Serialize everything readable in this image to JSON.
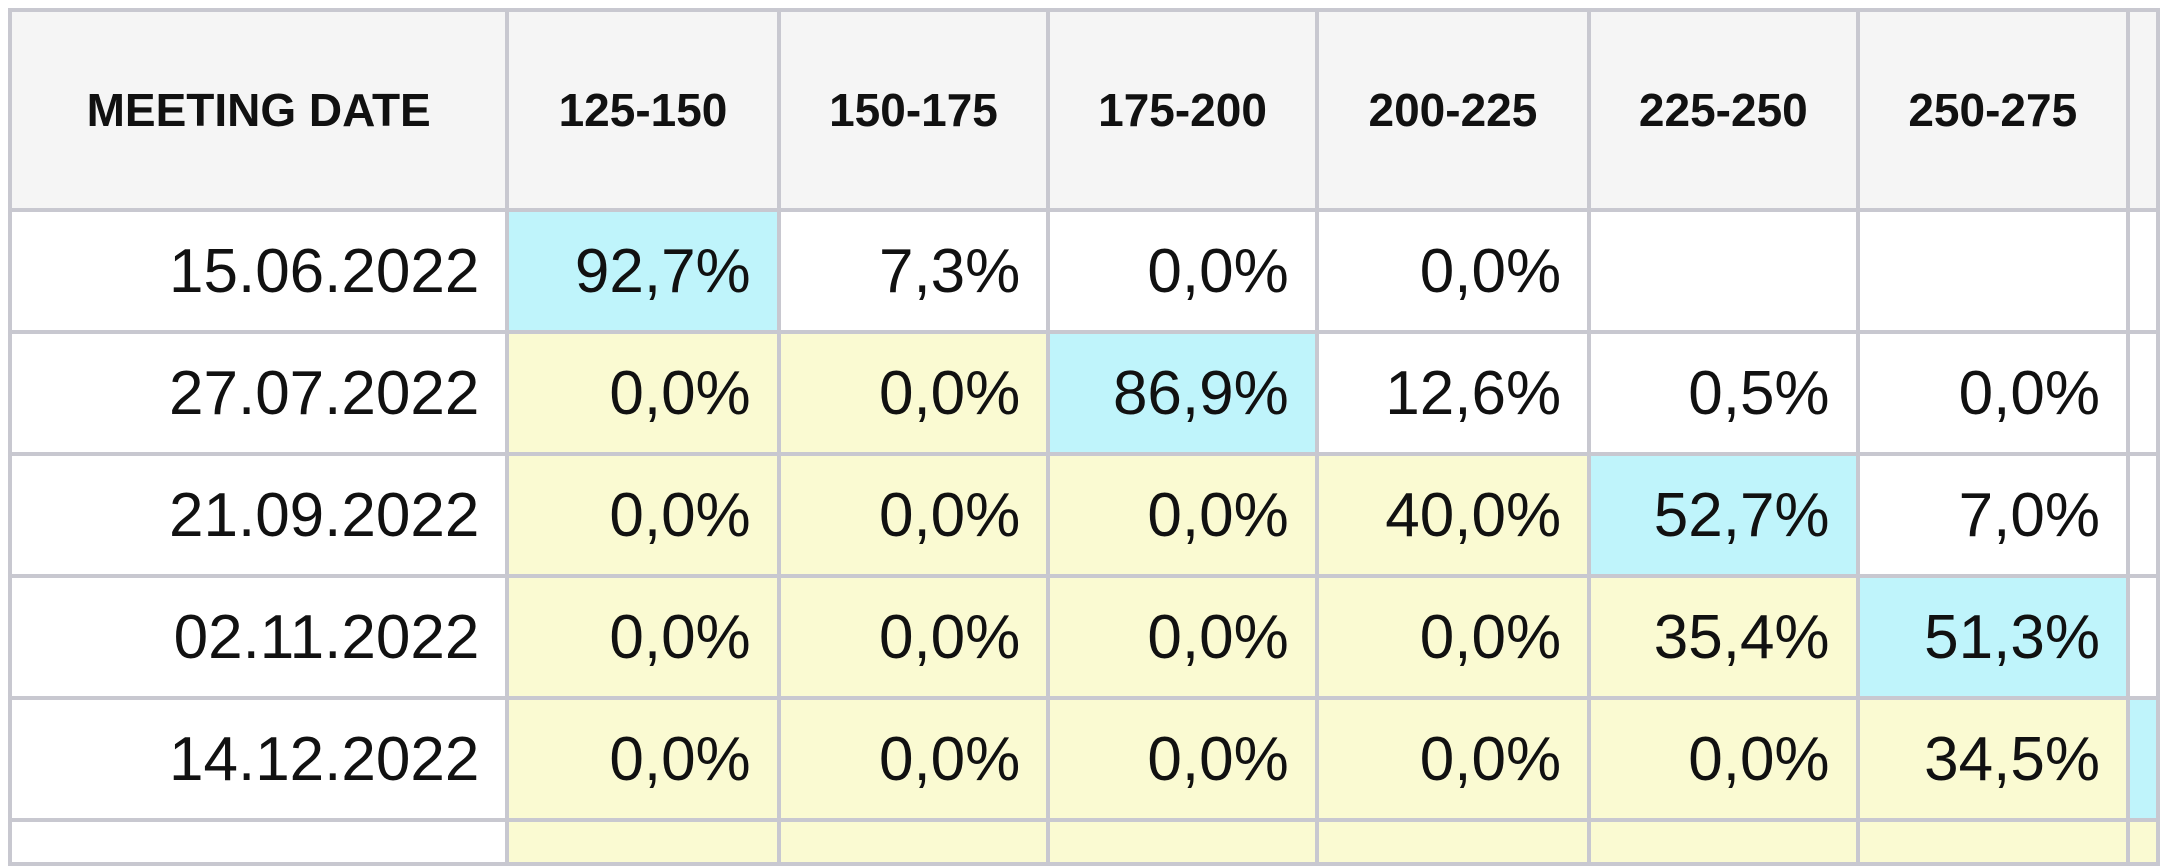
{
  "table": {
    "headers": [
      "MEETING DATE",
      "125-150",
      "150-175",
      "175-200",
      "200-225",
      "225-250",
      "250-275",
      ""
    ],
    "rows": [
      {
        "date": "15.06.2022",
        "cells": [
          "92,7%",
          "7,3%",
          "0,0%",
          "0,0%",
          "",
          "",
          ""
        ],
        "styles": [
          "c",
          "",
          "",
          "",
          "",
          "",
          ""
        ]
      },
      {
        "date": "27.07.2022",
        "cells": [
          "0,0%",
          "0,0%",
          "86,9%",
          "12,6%",
          "0,5%",
          "0,0%",
          ""
        ],
        "styles": [
          "y",
          "y",
          "c",
          "",
          "",
          "",
          ""
        ]
      },
      {
        "date": "21.09.2022",
        "cells": [
          "0,0%",
          "0,0%",
          "0,0%",
          "40,0%",
          "52,7%",
          "7,0%",
          ""
        ],
        "styles": [
          "y",
          "y",
          "y",
          "y",
          "c",
          "",
          ""
        ]
      },
      {
        "date": "02.11.2022",
        "cells": [
          "0,0%",
          "0,0%",
          "0,0%",
          "0,0%",
          "35,4%",
          "51,3%",
          ""
        ],
        "styles": [
          "y",
          "y",
          "y",
          "y",
          "y",
          "c",
          ""
        ]
      },
      {
        "date": "14.12.2022",
        "cells": [
          "0,0%",
          "0,0%",
          "0,0%",
          "0,0%",
          "0,0%",
          "34,5%",
          ""
        ],
        "styles": [
          "y",
          "y",
          "y",
          "y",
          "y",
          "y",
          "c"
        ]
      }
    ],
    "colors": {
      "header": "#f5f5f5",
      "highlight": "#bff4fb",
      "shaded": "#fafad2",
      "border": "#c8c8d0"
    }
  }
}
